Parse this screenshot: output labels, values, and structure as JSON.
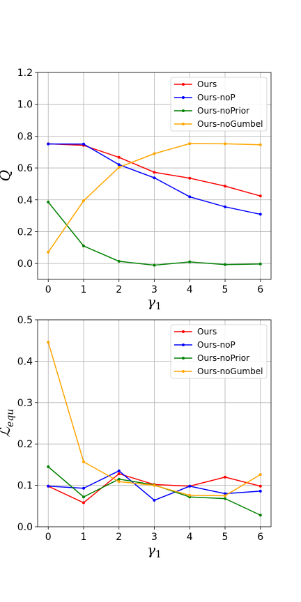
{
  "chart_data": [
    {
      "type": "line",
      "title": "",
      "xlabel": "γ1",
      "ylabel": "Q",
      "x": [
        0,
        1,
        2,
        3,
        4,
        5,
        6
      ],
      "xlim": [
        -0.3,
        6.3
      ],
      "ylim": [
        -0.1,
        1.2
      ],
      "xticks": [
        "0",
        "1",
        "2",
        "3",
        "4",
        "5",
        "6"
      ],
      "yticks": [
        "0.0",
        "0.2",
        "0.4",
        "0.6",
        "0.8",
        "1.0",
        "1.2"
      ],
      "grid": true,
      "legend_position": "top-right",
      "series": [
        {
          "name": "Ours",
          "color": "#ff0000",
          "values": [
            0.752,
            0.742,
            0.667,
            0.573,
            0.536,
            0.486,
            0.424
          ]
        },
        {
          "name": "Ours-noP",
          "color": "#0000ff",
          "values": [
            0.751,
            0.75,
            0.621,
            0.538,
            0.419,
            0.356,
            0.309
          ]
        },
        {
          "name": "Ours-noPrior",
          "color": "#008000",
          "values": [
            0.386,
            0.11,
            0.014,
            -0.011,
            0.01,
            -0.007,
            -0.003
          ]
        },
        {
          "name": "Ours-noGumbel",
          "color": "#ffa500",
          "values": [
            0.071,
            0.394,
            0.604,
            0.69,
            0.753,
            0.752,
            0.746
          ]
        }
      ]
    },
    {
      "type": "line",
      "title": "",
      "xlabel": "γ1",
      "ylabel": "L_equ",
      "x": [
        0,
        1,
        2,
        3,
        4,
        5,
        6
      ],
      "xlim": [
        -0.3,
        6.3
      ],
      "ylim": [
        0.0,
        0.5
      ],
      "xticks": [
        "0",
        "1",
        "2",
        "3",
        "4",
        "5",
        "6"
      ],
      "yticks": [
        "0.0",
        "0.1",
        "0.2",
        "0.3",
        "0.4",
        "0.5"
      ],
      "grid": true,
      "legend_position": "top-right",
      "series": [
        {
          "name": "Ours",
          "color": "#ff0000",
          "values": [
            0.098,
            0.058,
            0.128,
            0.102,
            0.098,
            0.12,
            0.098
          ]
        },
        {
          "name": "Ours-noP",
          "color": "#0000ff",
          "values": [
            0.098,
            0.093,
            0.135,
            0.064,
            0.098,
            0.08,
            0.086
          ]
        },
        {
          "name": "Ours-noPrior",
          "color": "#008000",
          "values": [
            0.145,
            0.072,
            0.115,
            0.101,
            0.072,
            0.068,
            0.028
          ]
        },
        {
          "name": "Ours-noGumbel",
          "color": "#ffa500",
          "values": [
            0.446,
            0.157,
            0.109,
            0.1,
            0.076,
            0.075,
            0.126
          ]
        }
      ]
    }
  ]
}
